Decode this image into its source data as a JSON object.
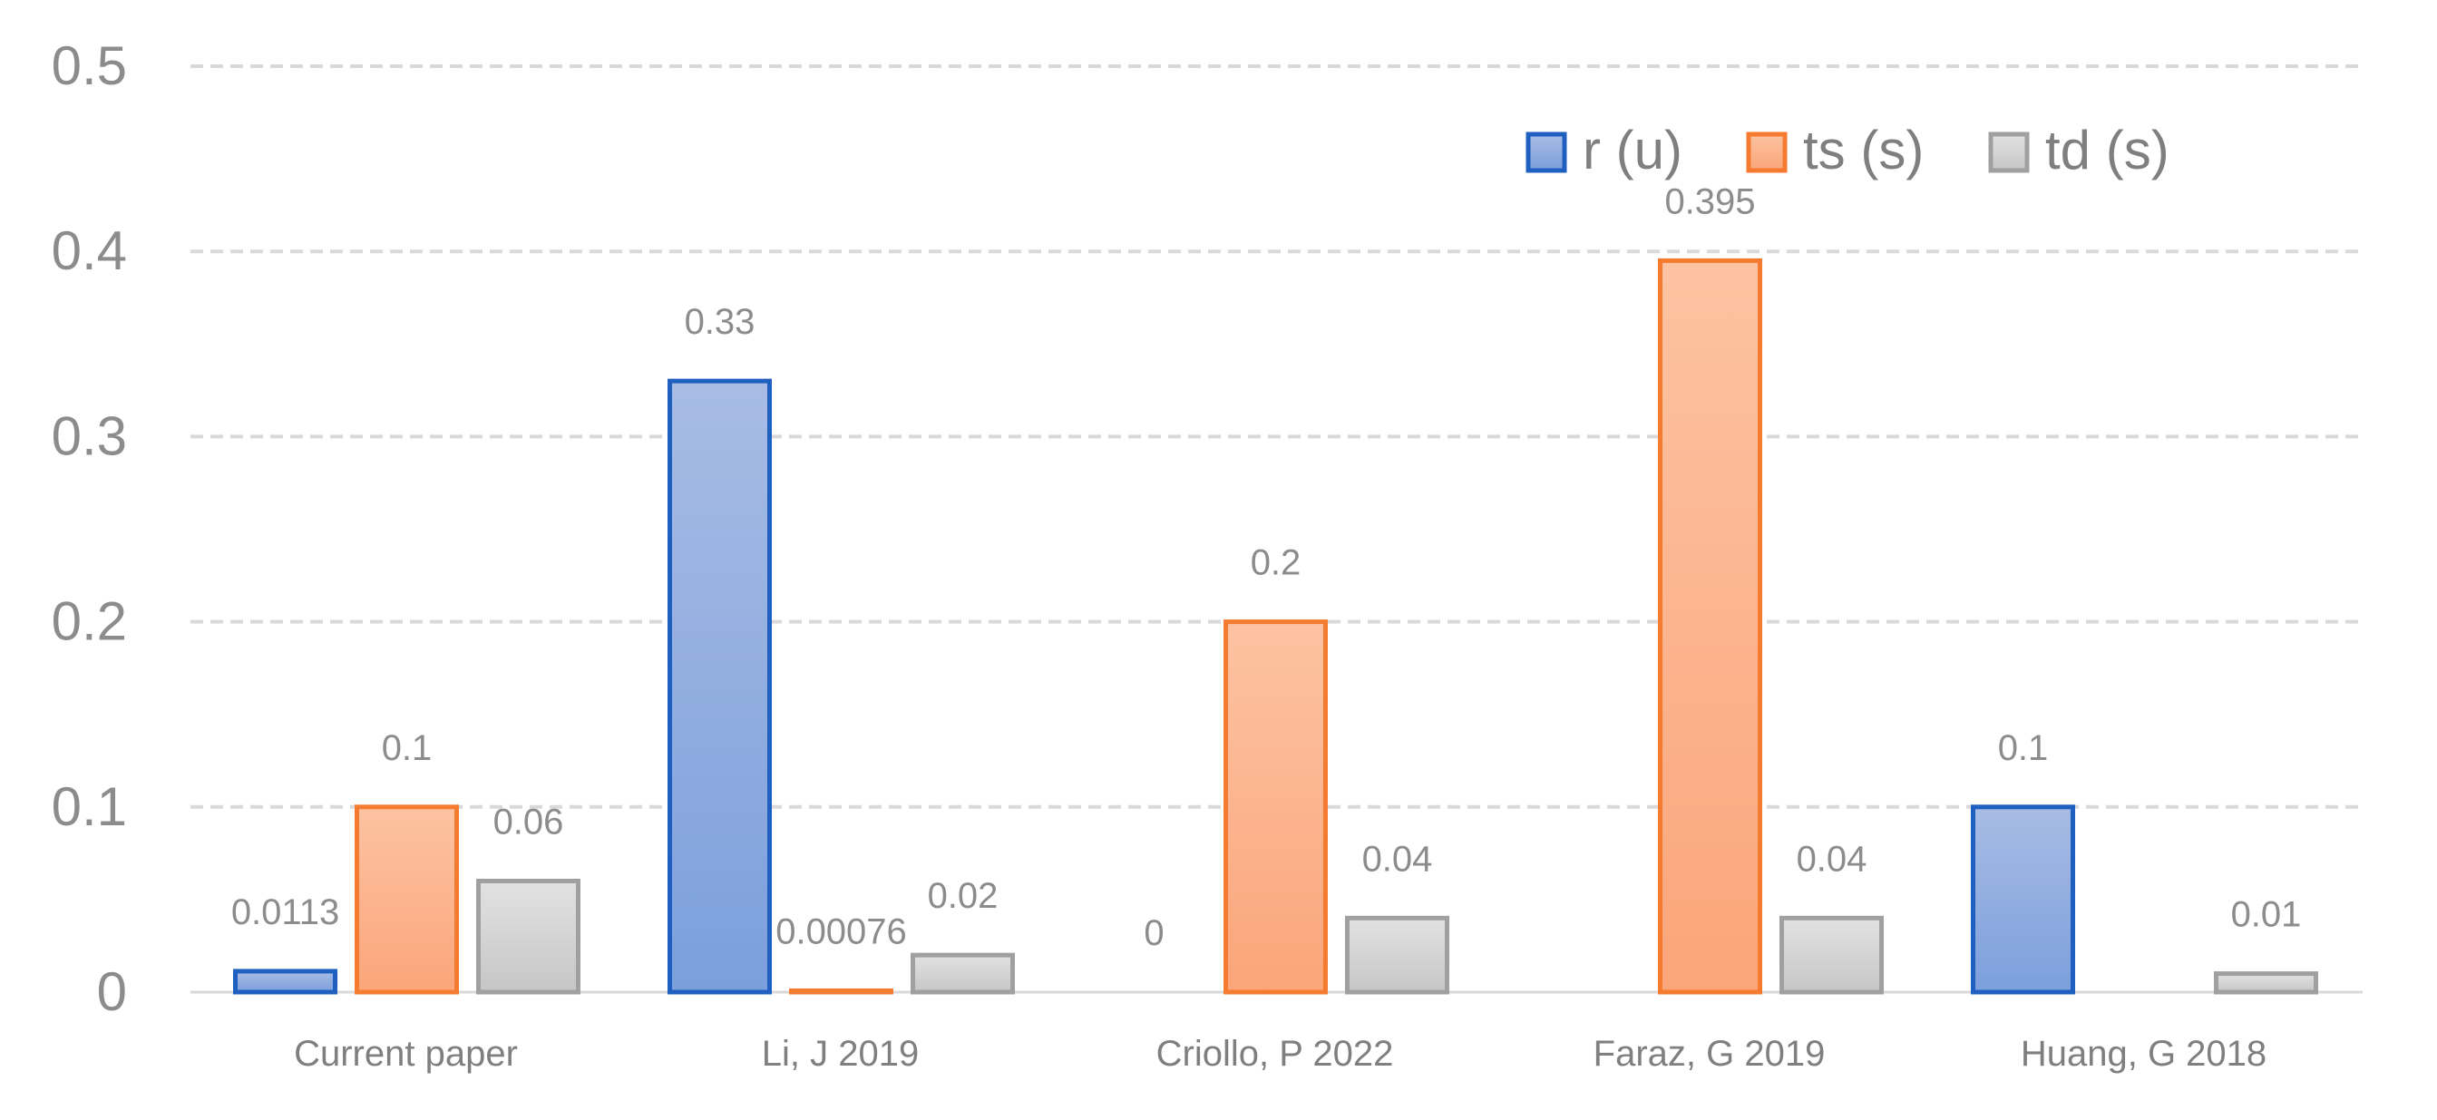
{
  "chart_data": {
    "type": "bar",
    "title": "",
    "xlabel": "",
    "ylabel": "",
    "ylim": [
      0,
      0.5
    ],
    "yticks": [
      0,
      0.1,
      0.2,
      0.3,
      0.4,
      0.5
    ],
    "ytick_labels": [
      "0",
      "0.1",
      "0.2",
      "0.3",
      "0.4",
      "0.5"
    ],
    "grid": "horizontal dashed",
    "legend_position": "top-right",
    "categories": [
      "Current paper",
      "Li, J 2019",
      "Criollo, P 2022",
      "Faraz, G 2019",
      "Huang, G 2018"
    ],
    "series": [
      {
        "name": "r (u)",
        "color": "#1f5fbf",
        "fill_top": "#a8bce4",
        "fill_bottom": "#7b9fdc",
        "values": [
          0.0113,
          0.33,
          0,
          null,
          0.1
        ],
        "labels": [
          "0.0113",
          "0.33",
          "0",
          "",
          "0.1"
        ]
      },
      {
        "name": "ts (s)",
        "color": "#f47b30",
        "fill_top": "#fcc3a2",
        "fill_bottom": "#fba57a",
        "values": [
          0.1,
          0.00076,
          0.2,
          0.395,
          null
        ],
        "labels": [
          "0.1",
          "0.00076",
          "0.2",
          "0.395",
          ""
        ]
      },
      {
        "name": "td (s)",
        "color": "#a0a0a0",
        "fill_top": "#e2e2e2",
        "fill_bottom": "#c6c6c6",
        "values": [
          0.06,
          0.02,
          0.04,
          0.04,
          0.01
        ],
        "labels": [
          "0.06",
          "0.02",
          "0.04",
          "0.04",
          "0.01"
        ]
      }
    ]
  }
}
